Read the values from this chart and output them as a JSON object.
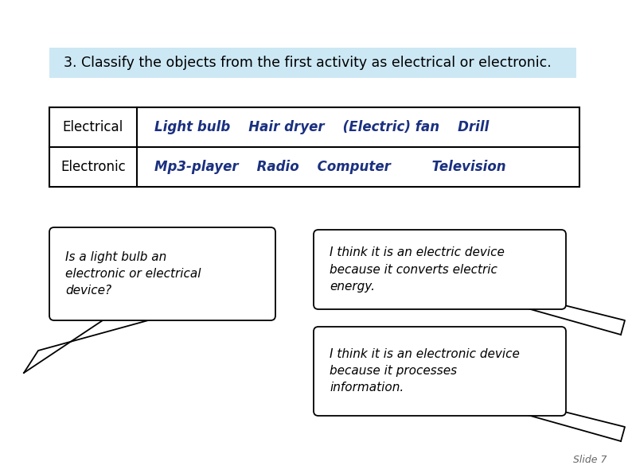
{
  "title": "3. Classify the objects from the first activity as electrical or electronic.",
  "title_bg": "#cce8f4",
  "title_fontsize": 12.5,
  "table_rows": [
    {
      "label": "Electrical",
      "items": "Light bulb    Hair dryer    (Electric) fan    Drill",
      "label_color": "#000000",
      "items_color": "#1a3080"
    },
    {
      "label": "Electronic",
      "items": "Mp3-player    Radio    Computer         Television",
      "label_color": "#000000",
      "items_color": "#1a3080"
    }
  ],
  "bubble_left_text": "Is a light bulb an\nelectronic or electrical\ndevice?",
  "bubble_right1_text": "I think it is an electric device\nbecause it converts electric\nenergy.",
  "bubble_right2_text": "I think it is an electronic device\nbecause it processes\ninformation.",
  "slide_number": "Slide 7",
  "bg_color": "#ffffff",
  "bubble_fontsize": 11
}
